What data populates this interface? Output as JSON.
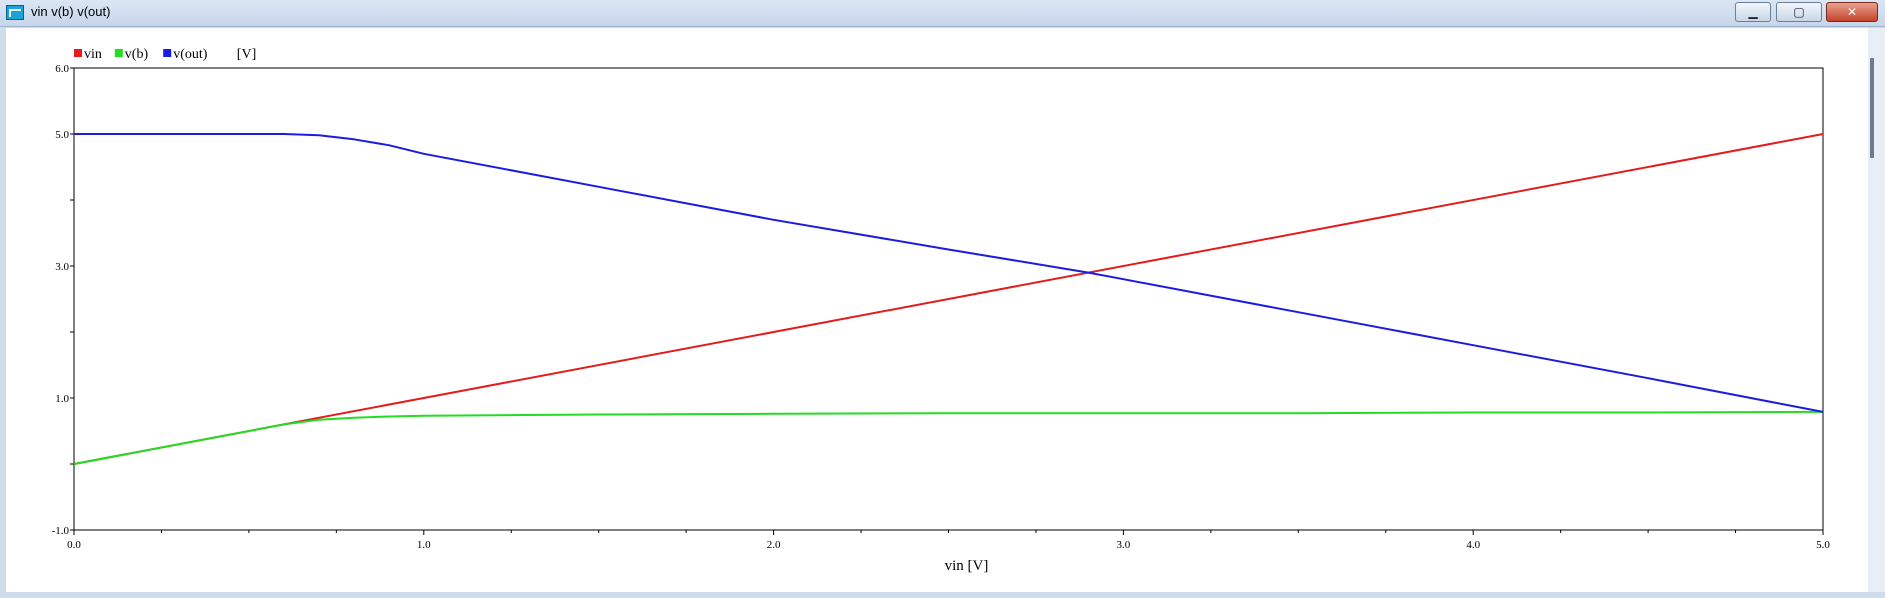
{
  "window": {
    "title": "vin v(b) v(out)",
    "minimize_symbol": "▁",
    "maximize_symbol": "▢",
    "close_symbol": "✕"
  },
  "chart_data": {
    "type": "line",
    "title": "",
    "xlabel": "vin [V]",
    "ylabel": "[V]",
    "xlim": [
      0,
      5
    ],
    "ylim": [
      -1,
      6
    ],
    "x_ticks": [
      "0.0",
      "1.0",
      "2.0",
      "3.0",
      "4.0",
      "5.0"
    ],
    "y_ticks": [
      "-1.0",
      "1.0",
      "3.0",
      "5.0",
      "6.0"
    ],
    "legend_position": "top-left",
    "series": [
      {
        "name": "vin",
        "color": "#e41c1c",
        "x": [
          0,
          5
        ],
        "y": [
          0,
          5
        ]
      },
      {
        "name": "v(b)",
        "color": "#22dd22",
        "x": [
          0,
          0.2,
          0.4,
          0.6,
          0.7,
          0.8,
          0.9,
          1.0,
          1.2,
          1.5,
          2.0,
          2.5,
          3.0,
          3.5,
          4.0,
          4.5,
          5.0
        ],
        "y": [
          0,
          0.2,
          0.4,
          0.6,
          0.67,
          0.7,
          0.72,
          0.73,
          0.74,
          0.75,
          0.76,
          0.77,
          0.77,
          0.77,
          0.78,
          0.78,
          0.79
        ]
      },
      {
        "name": "v(out)",
        "color": "#1c1ce0",
        "x": [
          0,
          0.6,
          0.7,
          0.8,
          0.9,
          1.0,
          1.5,
          2.0,
          2.5,
          2.9,
          3.0,
          3.5,
          4.0,
          4.5,
          5.0
        ],
        "y": [
          5.0,
          5.0,
          4.98,
          4.92,
          4.83,
          4.7,
          4.2,
          3.7,
          3.25,
          2.9,
          2.8,
          2.3,
          1.8,
          1.3,
          0.79
        ]
      }
    ]
  }
}
